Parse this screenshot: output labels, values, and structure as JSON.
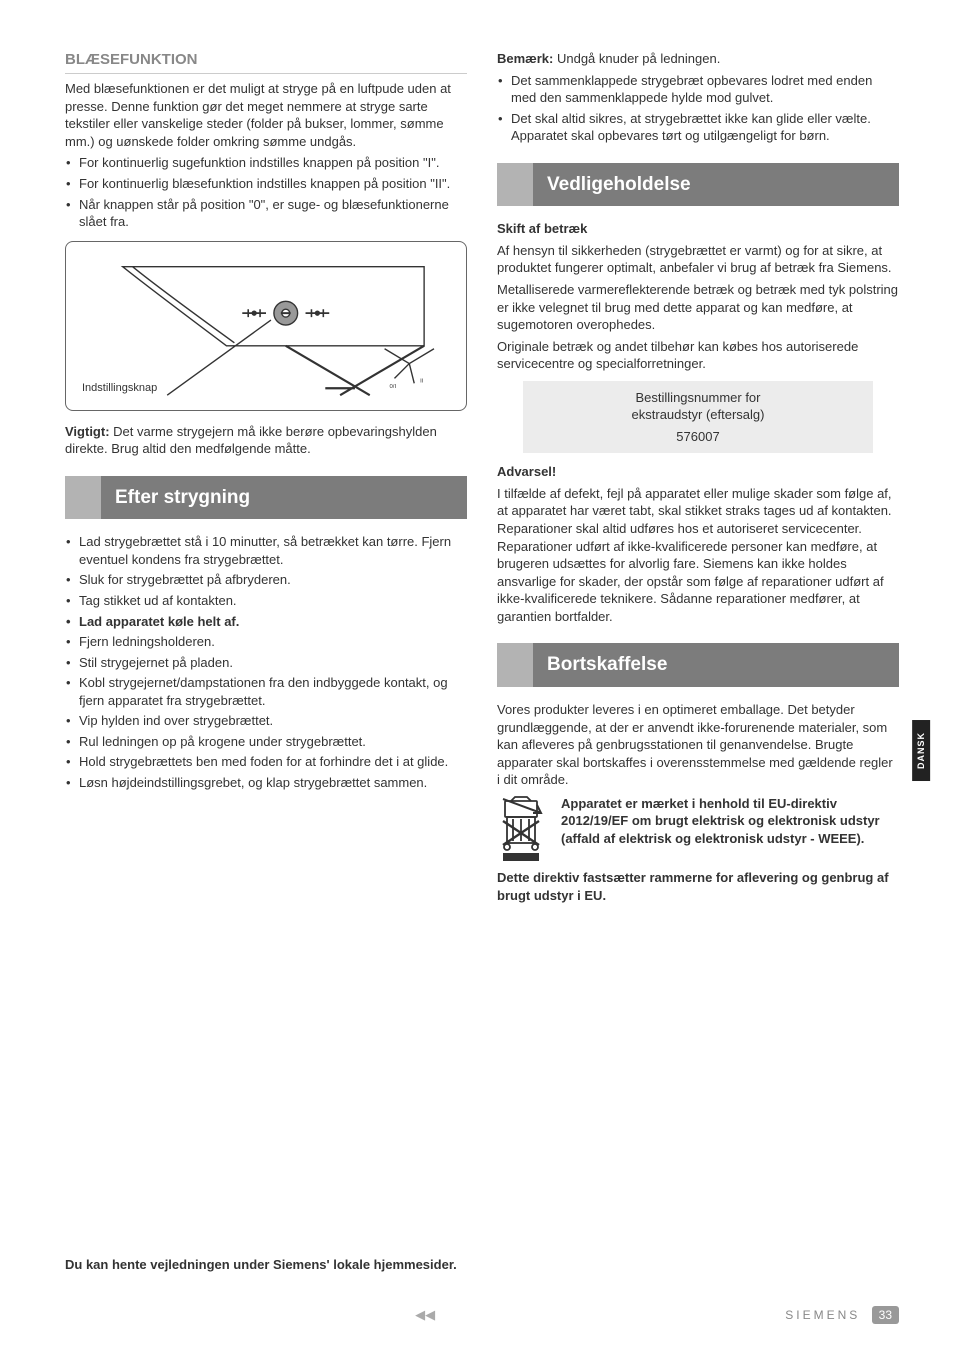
{
  "sideTab": "DANSK",
  "left": {
    "h_blaese": "BLÆSEFUNKTION",
    "blaese_p": "Med blæsefunktionen er det muligt at stryge på en luftpude uden at presse. Denne funktion gør det meget nemmere at stryge sarte tekstiler eller vanskelige steder (folder på bukser, lommer, sømme mm.) og uønskede folder omkring sømme undgås.",
    "blaese_items": [
      "For kontinuerlig sugefunktion indstilles knappen på position \"I\".",
      "For kontinuerlig blæsefunktion indstilles knappen på position \"II\".",
      "Når knappen står på position \"0\", er suge- og blæsefunktionerne slået fra."
    ],
    "figure_label": "Indstillingsknap",
    "vigtigt_label": "Vigtigt:",
    "vigtigt_text": " Det varme strygejern må ikke berøre opbevaringshylden direkte. Brug altid den medfølgende måtte.",
    "h_efter": "Efter strygning",
    "efter_items": [
      "Lad strygebrættet stå i 10 minutter, så betrækket kan tørre. Fjern eventuel kondens fra strygebrættet.",
      "Sluk for strygebrættet på afbryderen.",
      "Tag stikket ud af kontakten.",
      "Lad apparatet køle helt af.",
      "Fjern ledningsholderen.",
      "Stil strygejernet på pladen.",
      "Kobl strygejernet/dampstationen fra den indbyggede kontakt, og fjern apparatet fra strygebrættet.",
      "Vip hylden ind over strygebrættet.",
      "Rul ledningen op på krogene under strygebrættet.",
      "Hold strygebrættets ben med foden for at forhindre det i at glide.",
      "Løsn højdeindstillingsgrebet, og klap strygebrættet sammen."
    ],
    "efter_bold_index": 3
  },
  "right": {
    "bemaerk_label": "Bemærk:",
    "bemaerk_text": " Undgå knuder på ledningen.",
    "bemaerk_items": [
      "Det sammenklappede strygebræt opbevares lodret med enden med den sammenklappede hylde mod gulvet.",
      "Det skal altid sikres, at strygebrættet ikke kan glide eller vælte. Apparatet skal opbevares tørt og utilgængeligt for børn."
    ],
    "h_vedl": "Vedligeholdelse",
    "skift_h": "Skift af betræk",
    "skift_p1": "Af hensyn til sikkerheden (strygebrættet er varmt) og for at sikre, at produktet fungerer optimalt, anbefaler vi brug af betræk fra Siemens.",
    "skift_p2": "Metalliserede varmereflekterende betræk og betræk med tyk polstring er ikke velegnet til brug med dette apparat og kan medføre, at sugemotoren overophedes.",
    "skift_p3": "Originale betræk og andet tilbehør kan købes hos autoriserede servicecentre og specialforretninger.",
    "order_l1": "Bestillingsnummer for",
    "order_l2": "ekstraudstyr (eftersalg)",
    "order_num": "576007",
    "adv_h": "Advarsel!",
    "adv_p": "I tilfælde af defekt, fejl på apparatet eller mulige skader som følge af, at apparatet har været tabt, skal stikket straks tages ud af kontakten. Reparationer skal altid udføres hos et autoriseret servicecenter. Reparationer udført af ikke-kvalificerede personer kan medføre, at brugeren udsættes for alvorlig fare. Siemens kan ikke holdes ansvarlige for skader, der opstår som følge af reparationer udført af ikke-kvalificerede teknikere. Sådanne reparationer medfører, at garantien bortfalder.",
    "h_bort": "Bortskaffelse",
    "bort_p": "Vores produkter leveres i en optimeret emballage. Det betyder grundlæggende, at der er anvendt ikke-forurenende materialer, som kan afleveres på genbrugsstationen til genanvendelse. Brugte apparater skal bortskaffes i overensstemmelse med gældende regler i dit område.",
    "weee_p1": "Apparatet er mærket i henhold til EU-direktiv 2012/19/EF om brugt elektrisk og elektronisk udstyr (affald af elektrisk og elektronisk udstyr - WEEE).",
    "weee_p2": "Dette direktiv fastsætter rammerne for aflevering og genbrug af brugt udstyr i EU."
  },
  "download": "Du kan hente vejledningen under Siemens' lokale hjemmesider.",
  "footer": {
    "brand": "SIEMENS",
    "page": "33",
    "center": "◀◀"
  }
}
